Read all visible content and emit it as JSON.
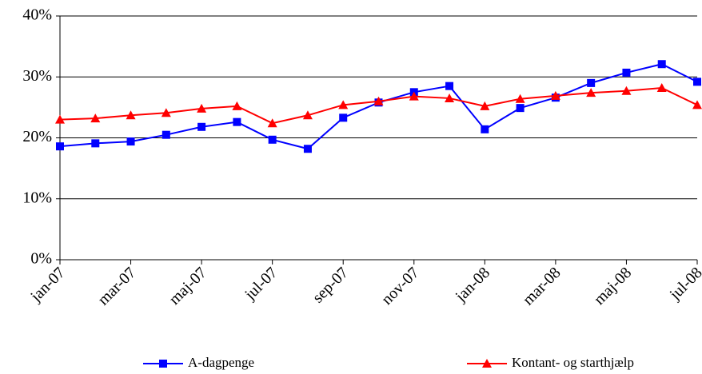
{
  "chart_data": {
    "type": "line",
    "categories": [
      "jan-07",
      null,
      "mar-07",
      null,
      "maj-07",
      null,
      "jul-07",
      null,
      "sep-07",
      null,
      "nov-07",
      null,
      "jan-08",
      null,
      "mar-08",
      null,
      "maj-08",
      null,
      "jul-08"
    ],
    "series": [
      {
        "name": "A-dagpenge",
        "color": "#0000ff",
        "marker": "square",
        "values": [
          18.6,
          19.1,
          19.4,
          20.5,
          21.8,
          22.6,
          19.7,
          18.2,
          23.3,
          25.8,
          27.5,
          28.5,
          21.4,
          24.9,
          26.6,
          29.0,
          30.7,
          32.1,
          29.2
        ]
      },
      {
        "name": "Kontant- og starthjælp",
        "color": "#ff0000",
        "marker": "triangle",
        "values": [
          23.0,
          23.2,
          23.7,
          24.1,
          24.8,
          25.2,
          22.4,
          23.7,
          25.4,
          26.0,
          26.8,
          26.5,
          25.2,
          26.4,
          26.9,
          27.4,
          27.7,
          28.2,
          25.4
        ]
      }
    ],
    "ylim": [
      0,
      40
    ],
    "yticks": [
      {
        "value": 0,
        "label": "0%"
      },
      {
        "value": 10,
        "label": "10%"
      },
      {
        "value": 20,
        "label": "20%"
      },
      {
        "value": 30,
        "label": "30%"
      },
      {
        "value": 40,
        "label": "40%"
      }
    ],
    "grid": true
  }
}
